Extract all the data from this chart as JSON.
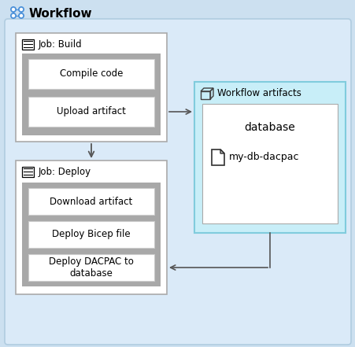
{
  "title": "Workflow",
  "bg_color": "#cce0f0",
  "outer_bg": "#daeaf8",
  "outer_border": "#b0cce0",
  "white": "#ffffff",
  "gray_border": "#aaaaaa",
  "step_border": "#cccccc",
  "step_bg": "#999999",
  "cyan_bg": "#c8eef8",
  "cyan_border": "#80ccdd",
  "text_color": "#000000",
  "job_build_label": "Job: Build",
  "job_deploy_label": "Job: Deploy",
  "artifacts_label": "Workflow artifacts",
  "artifact_name": "database",
  "artifact_file": "my-db-dacpac",
  "steps_build": [
    "Compile code",
    "Upload artifact"
  ],
  "steps_deploy": [
    "Download artifact",
    "Deploy Bicep file",
    "Deploy DACPAC to\ndatabase"
  ],
  "arrow_color": "#555555",
  "figw": 4.52,
  "figh": 4.41,
  "dpi": 100
}
